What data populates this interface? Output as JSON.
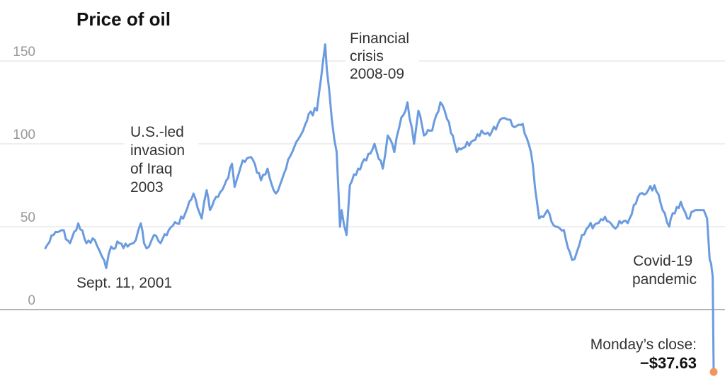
{
  "colors": {
    "line": "#6b9bdf",
    "endpoint": "#f0965a",
    "grid": "#dddddd",
    "zero": "#888888"
  },
  "chart_data": {
    "type": "line",
    "title": "Price of oil",
    "xlabel": "",
    "ylabel": "",
    "xlim": [
      2000.0,
      2020.3
    ],
    "ylim": [
      -40,
      170
    ],
    "yticks": [
      0,
      50,
      100,
      150
    ],
    "grid": true,
    "legend": "none",
    "series": [
      {
        "x": [
          2000.0,
          2000.25,
          2000.5,
          2000.75,
          2001.0,
          2001.25,
          2001.5,
          2001.72,
          2001.85,
          2002.0,
          2002.25,
          2002.5,
          2002.75,
          2002.9,
          2003.0,
          2003.15,
          2003.3,
          2003.5,
          2003.75,
          2004.0,
          2004.25,
          2004.5,
          2004.75,
          2004.9,
          2005.0,
          2005.25,
          2005.5,
          2005.67,
          2005.75,
          2006.0,
          2006.25,
          2006.55,
          2006.75,
          2007.0,
          2007.25,
          2007.5,
          2007.75,
          2007.9,
          2008.0,
          2008.25,
          2008.5,
          2008.55,
          2008.7,
          2008.85,
          2008.95,
          2009.0,
          2009.15,
          2009.25,
          2009.5,
          2009.75,
          2010.0,
          2010.25,
          2010.4,
          2010.6,
          2010.75,
          2011.0,
          2011.2,
          2011.33,
          2011.5,
          2011.75,
          2012.0,
          2012.2,
          2012.5,
          2012.75,
          2013.0,
          2013.25,
          2013.5,
          2013.75,
          2014.0,
          2014.25,
          2014.5,
          2014.75,
          2015.0,
          2015.25,
          2015.5,
          2015.75,
          2016.0,
          2016.15,
          2016.3,
          2016.5,
          2016.75,
          2017.0,
          2017.25,
          2017.5,
          2017.75,
          2018.0,
          2018.25,
          2018.5,
          2018.75,
          2018.95,
          2019.0,
          2019.3,
          2019.5,
          2019.75,
          2020.0,
          2020.1,
          2020.18,
          2020.22,
          2020.27,
          2020.3
        ],
        "y": [
          37,
          45,
          48,
          40,
          52,
          40,
          42,
          32,
          25,
          38,
          40,
          38,
          42,
          52,
          40,
          38,
          45,
          40,
          48,
          52,
          58,
          70,
          55,
          72,
          60,
          68,
          78,
          88,
          74,
          90,
          92,
          78,
          85,
          70,
          82,
          95,
          105,
          112,
          118,
          120,
          160,
          145,
          115,
          95,
          50,
          60,
          45,
          75,
          85,
          90,
          100,
          85,
          105,
          95,
          110,
          125,
          100,
          120,
          105,
          108,
          125,
          115,
          95,
          98,
          102,
          108,
          105,
          112,
          115,
          110,
          112,
          95,
          55,
          60,
          50,
          48,
          30,
          35,
          45,
          50,
          52,
          56,
          50,
          52,
          55,
          68,
          70,
          75,
          60,
          50,
          55,
          65,
          55,
          60,
          60,
          55,
          30,
          28,
          20,
          -37.63
        ]
      }
    ],
    "annotations": {
      "sept11": "Sept. 11, 2001",
      "iraq": [
        "U.S.-led",
        "invasion",
        "of Iraq",
        "2003"
      ],
      "crisis": [
        "Financial",
        "crisis",
        "2008-09"
      ],
      "covid": [
        "Covid-19",
        "pandemic"
      ],
      "close_label": "Monday’s close:",
      "close_value": "−$37.63"
    }
  }
}
